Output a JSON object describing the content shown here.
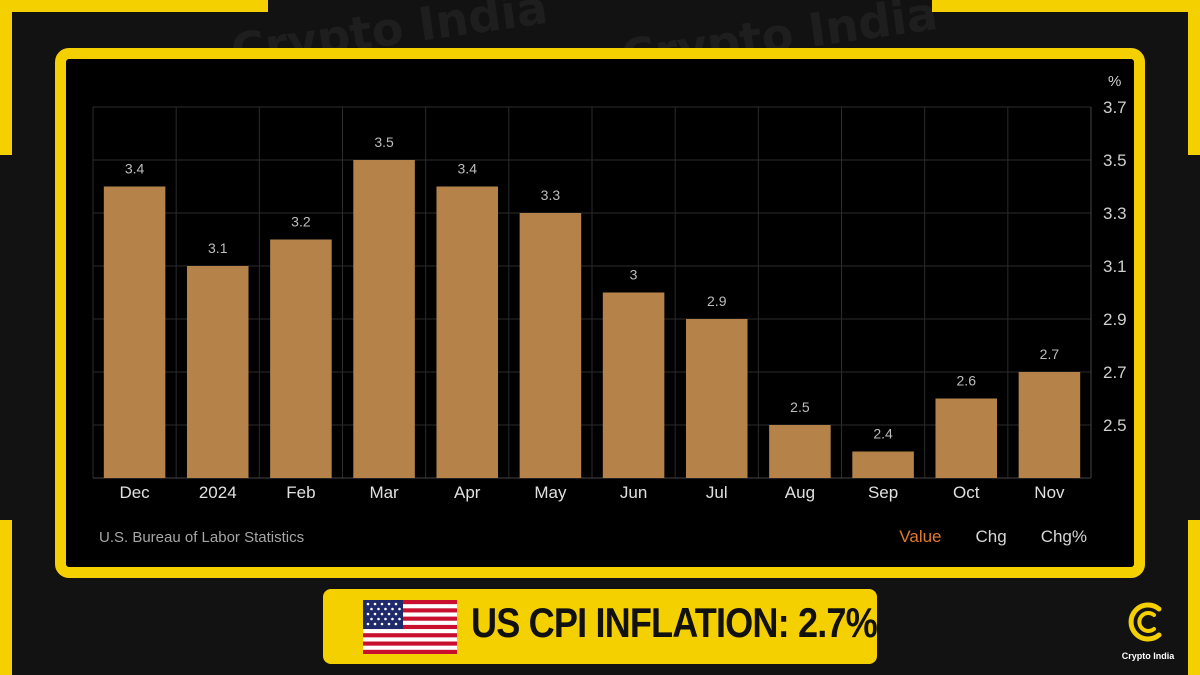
{
  "brand": {
    "name": "Crypto India",
    "accent_color": "#f5d000",
    "logo_icon": "crypto-india-c-icon"
  },
  "chart_data": {
    "type": "bar",
    "categories": [
      "Dec",
      "2024",
      "Feb",
      "Mar",
      "Apr",
      "May",
      "Jun",
      "Jul",
      "Aug",
      "Sep",
      "Oct",
      "Nov"
    ],
    "values": [
      3.4,
      3.1,
      3.2,
      3.5,
      3.4,
      3.3,
      3,
      2.9,
      2.5,
      2.4,
      2.6,
      2.7
    ],
    "data_labels": [
      "3.4",
      "3.1",
      "3.2",
      "3.5",
      "3.4",
      "3.3",
      "3",
      "2.9",
      "2.5",
      "2.4",
      "2.6",
      "2.7"
    ],
    "y_unit": "%",
    "y_ticks": [
      "3.7",
      "3.5",
      "3.3",
      "3.1",
      "2.9",
      "2.7",
      "2.5"
    ],
    "ylim": [
      2.3,
      3.7
    ],
    "y_axis_side": "right",
    "grid": true,
    "bar_color": "#b5834a",
    "source": "U.S. Bureau of Labor Statistics",
    "tabs": [
      {
        "label": "Value",
        "active": true
      },
      {
        "label": "Chg",
        "active": false
      },
      {
        "label": "Chg%",
        "active": false
      }
    ]
  },
  "banner": {
    "title": "US CPI INFLATION: 2.7%",
    "flag_icon": "us-flag-icon"
  }
}
